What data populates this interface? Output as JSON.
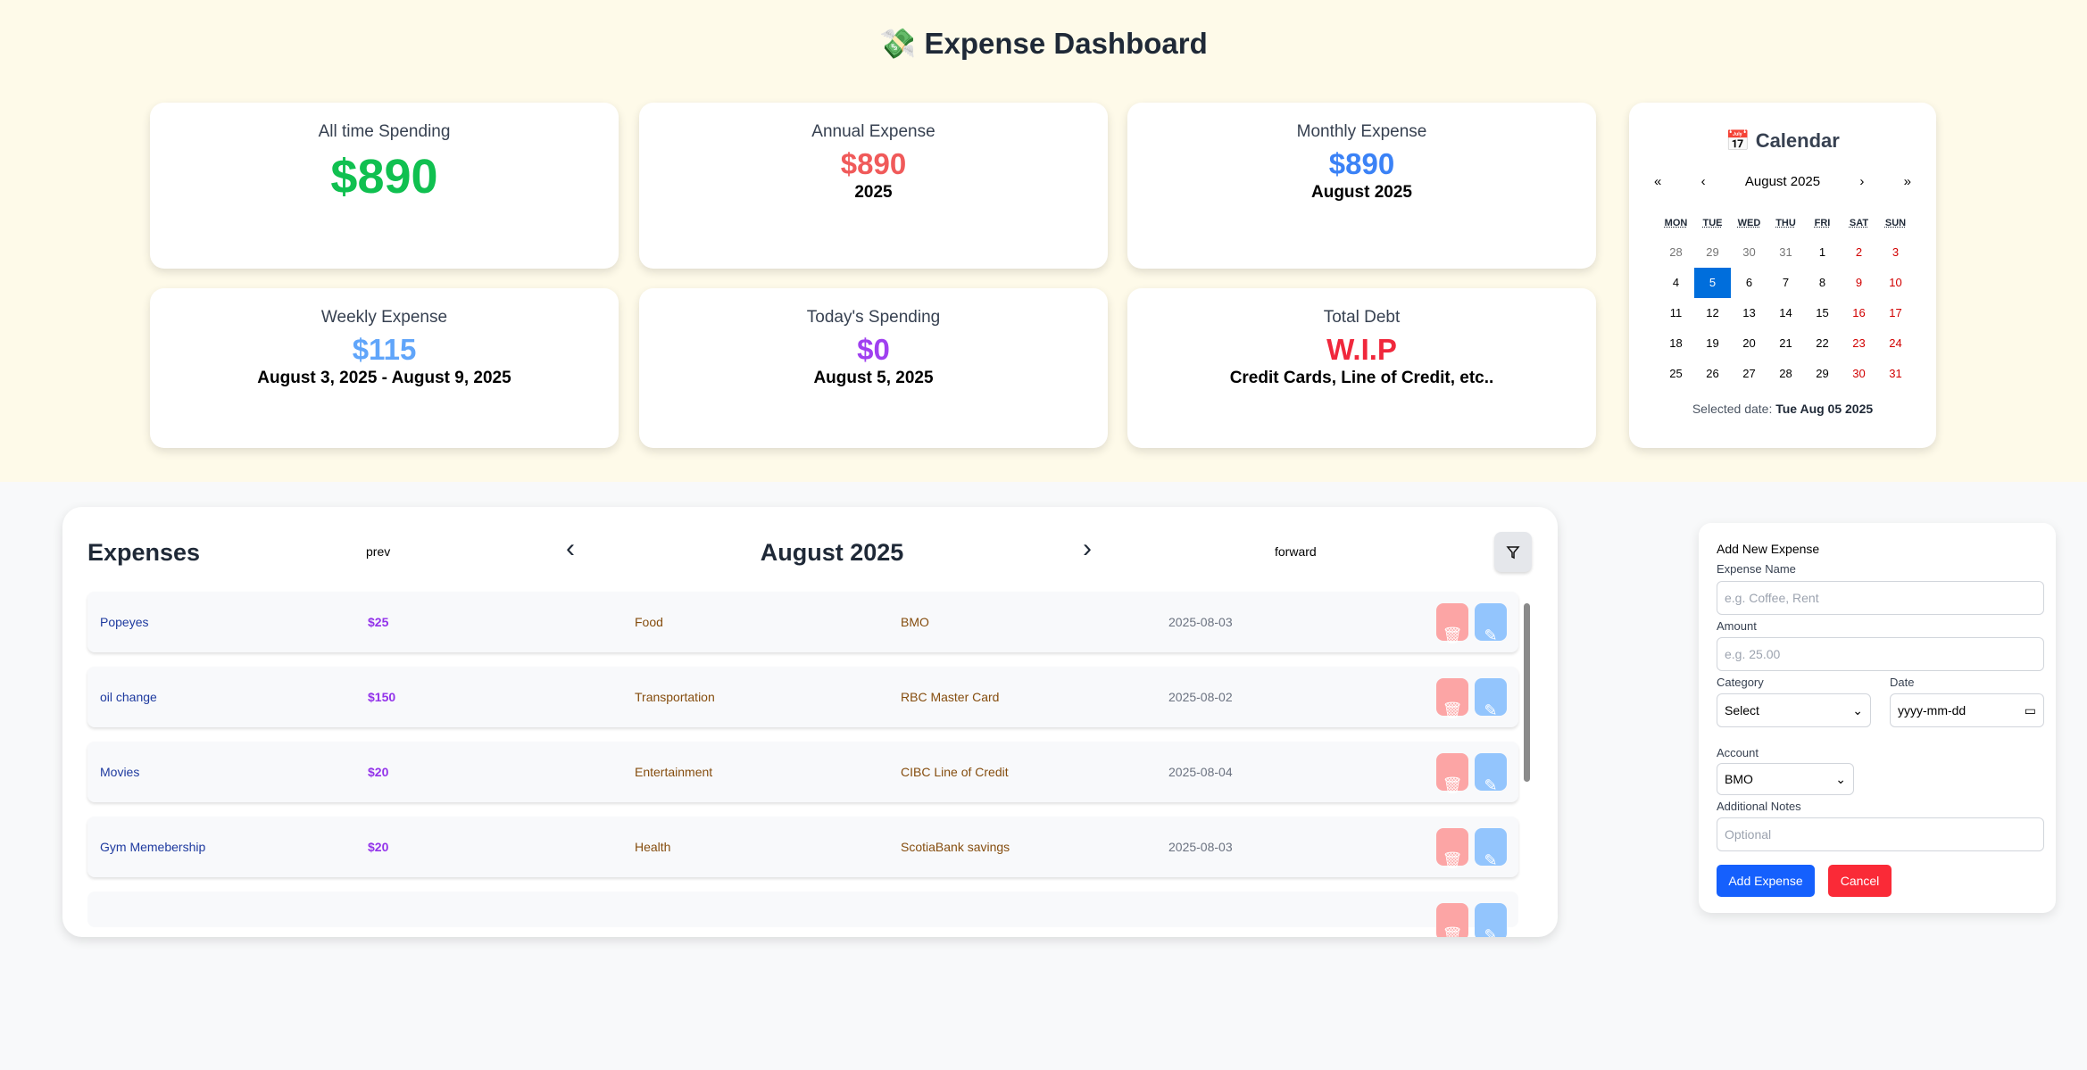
{
  "header": {
    "icon": "money-with-wings-icon",
    "title": "Expense Dashboard"
  },
  "cards": [
    {
      "label": "All time Spending",
      "value": "$890",
      "sub": "",
      "color": "#10c050"
    },
    {
      "label": "Annual Expense",
      "value": "$890",
      "sub": "2025",
      "color": "#f05a5a"
    },
    {
      "label": "Monthly Expense",
      "value": "$890",
      "sub": "August 2025",
      "color": "#3b82f6"
    },
    {
      "label": "Weekly Expense",
      "value": "$115",
      "sub": "August 3, 2025 - August 9, 2025",
      "color": "#60a5fa"
    },
    {
      "label": "Today's Spending",
      "value": "$0",
      "sub": "August 5, 2025",
      "color": "#a040f0"
    },
    {
      "label": "Total Debt",
      "value": "W.I.P",
      "sub": "Credit Cards, Line of Credit, etc..",
      "color": "#f0283c"
    }
  ],
  "calendar": {
    "title": "Calendar",
    "month": "August 2025",
    "nav": [
      "«",
      "‹",
      "›",
      "»"
    ],
    "weekdays": [
      "MON",
      "TUE",
      "WED",
      "THU",
      "FRI",
      "SAT",
      "SUN"
    ],
    "days": [
      "28",
      "29",
      "30",
      "31",
      "1",
      "2",
      "3",
      "4",
      "5",
      "6",
      "7",
      "8",
      "9",
      "10",
      "11",
      "12",
      "13",
      "14",
      "15",
      "16",
      "17",
      "18",
      "19",
      "20",
      "21",
      "22",
      "23",
      "24",
      "25",
      "26",
      "27",
      "28",
      "29",
      "30",
      "31"
    ],
    "selected_label": "Selected date:",
    "selected_value": "Tue Aug 05 2025"
  },
  "expenses": {
    "title": "Expenses",
    "prev": "prev",
    "forward": "forward",
    "month": "August 2025",
    "prev_icon": "‹",
    "next_icon": "›",
    "rows": [
      {
        "name": "Popeyes",
        "amount": "$25",
        "category": "Food",
        "account": "BMO",
        "date": "2025-08-03"
      },
      {
        "name": "oil change",
        "amount": "$150",
        "category": "Transportation",
        "account": "RBC Master Card",
        "date": "2025-08-02"
      },
      {
        "name": "Movies",
        "amount": "$20",
        "category": "Entertainment",
        "account": "CIBC Line of Credit",
        "date": "2025-08-04"
      },
      {
        "name": "Gym Memebership",
        "amount": "$20",
        "category": "Health",
        "account": "ScotiaBank savings",
        "date": "2025-08-03"
      }
    ]
  },
  "form": {
    "title": "Add New Expense",
    "name_label": "Expense Name",
    "name_placeholder": "e.g. Coffee, Rent",
    "amount_label": "Amount",
    "amount_placeholder": "e.g. 25.00",
    "category_label": "Category",
    "category_value": "Select",
    "date_label": "Date",
    "date_placeholder": "yyyy-mm-dd",
    "account_label": "Account",
    "account_value": "BMO",
    "notes_label": "Additional Notes",
    "notes_placeholder": "Optional",
    "add": "Add Expense",
    "cancel": "Cancel"
  }
}
